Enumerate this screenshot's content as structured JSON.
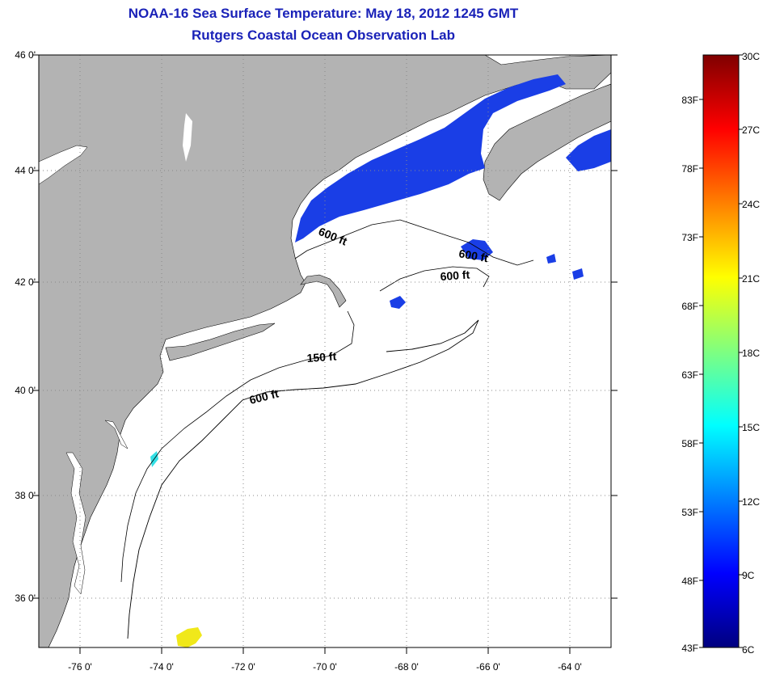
{
  "title": "NOAA-16 Sea Surface Temperature:  May 18, 2012 1245 GMT",
  "subtitle": "Rutgers Coastal Ocean Observation Lab",
  "map": {
    "lat_labels": [
      "46 0'",
      "44 0'",
      "42 0'",
      "40 0'",
      "38 0'",
      "36 0'"
    ],
    "lon_labels": [
      "-76 0'",
      "-74 0'",
      "-72 0'",
      "-70 0'",
      "-68 0'",
      "-66 0'",
      "-64 0'"
    ],
    "lat_range": [
      35,
      46
    ],
    "lon_range": [
      -77,
      -63
    ],
    "gridlines": "dotted",
    "colors": {
      "land": "#b3b3b3",
      "ocean_nodata": "#ffffff",
      "cold_water": "#1a3ee6",
      "warm_patch": "#f0e81a",
      "contour": "#000000"
    },
    "contours": [
      {
        "label": "600 ft"
      },
      {
        "label": "600 ft"
      },
      {
        "label": "600 ft"
      },
      {
        "label": "150 ft"
      },
      {
        "label": "600 ft"
      }
    ]
  },
  "colorbar": {
    "celsius_labels": [
      "30C",
      "27C",
      "24C",
      "21C",
      "18C",
      "15C",
      "12C",
      "9C",
      "6C"
    ],
    "fahrenheit_labels": [
      "83F",
      "78F",
      "73F",
      "68F",
      "63F",
      "58F",
      "53F",
      "48F",
      "43F"
    ],
    "range_c": [
      6,
      30
    ],
    "colormap": "jet"
  }
}
